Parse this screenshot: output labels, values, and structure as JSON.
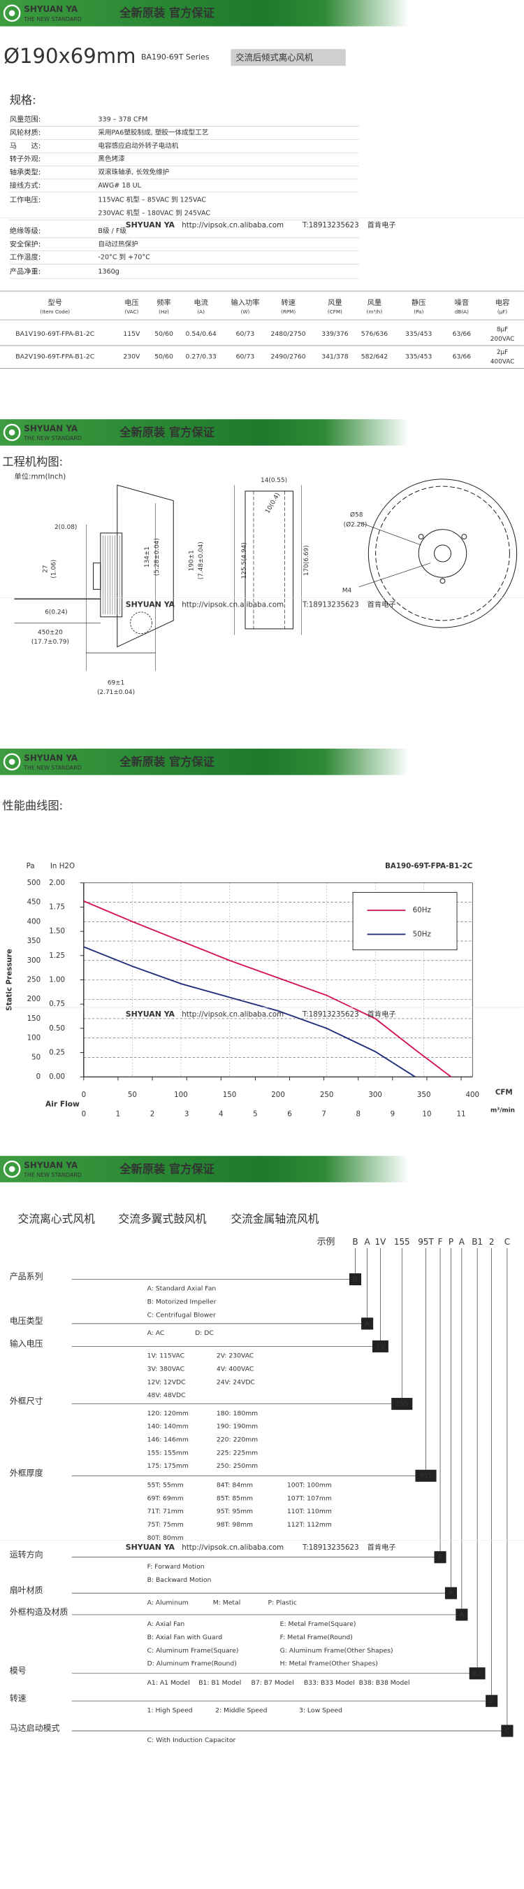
{
  "banner": {
    "brand": "SHYUAN YA",
    "slogan": "THE NEW STANDARD",
    "tagline": "全新原装 官方保证"
  },
  "watermark": {
    "brand": "SHYUAN YA",
    "url": "http://vipsok.cn.alibaba.com",
    "phone": "T:18913235623",
    "company": "首肯电子"
  },
  "title": {
    "size": "Ø190x69mm",
    "series": "BA190-69T Series",
    "desc": "交流后倾式离心风机"
  },
  "spec": {
    "heading": "规格:",
    "rows": [
      [
        "风量范围:",
        "339 – 378 CFM"
      ],
      [
        "风轮材质:",
        "采用PA6塑胶制成, 塑胶一体成型工艺"
      ],
      [
        "马　　达:",
        "电容感应启动外转子电动机"
      ],
      [
        "转子外观:",
        "黑色烤漆"
      ],
      [
        "轴承类型:",
        "双滚珠轴承, 长效免维护"
      ],
      [
        "接线方式:",
        "AWG# 18 UL"
      ],
      [
        "工作电压:",
        [
          "115VAC 机型 – 85VAC 到 125VAC",
          "230VAC 机型 – 180VAC 到 245VAC"
        ]
      ],
      [
        "绝缘等级:",
        "B级 / F级"
      ],
      [
        "安全保护:",
        "自动过热保护"
      ],
      [
        "工作温度:",
        "-20°C 到 +70°C"
      ],
      [
        "产品净重:",
        "1360g"
      ]
    ]
  },
  "table": {
    "headers": [
      [
        "型号",
        "(Item Code)"
      ],
      [
        "电压",
        "(VAC)"
      ],
      [
        "频率",
        "(Hz)"
      ],
      [
        "电流",
        "(A)"
      ],
      [
        "输入功率",
        "(W)"
      ],
      [
        "转速",
        "(RPM)"
      ],
      [
        "风量",
        "(CFM)"
      ],
      [
        "风量",
        "(m³/h)"
      ],
      [
        "静压",
        "(Pa)"
      ],
      [
        "噪音",
        "dB(A)"
      ],
      [
        "电容",
        "(μF)"
      ]
    ],
    "rows": [
      [
        "BA1V190-69T-FPA-B1-2C",
        "115V",
        "50/60",
        "0.54/0.64",
        "60/73",
        "2480/2750",
        "339/376",
        "576/636",
        "335/453",
        "63/66",
        [
          "8μF",
          "200VAC"
        ]
      ],
      [
        "BA2V190-69T-FPA-B1-2C",
        "230V",
        "50/60",
        "0.27/0.33",
        "60/73",
        "2490/2760",
        "341/378",
        "582/642",
        "335/453",
        "63/66",
        [
          "2μF",
          "400VAC"
        ]
      ]
    ]
  },
  "drawing": {
    "heading": "工程机构图:",
    "unit": "单位:mm(Inch)",
    "dims": [
      "14(0.55)",
      "2(0.08)",
      "10(0.4)",
      "Ø58",
      "(Ø2.28)",
      "27",
      "(1.06)",
      "134±1",
      "(5.28±0.04)",
      "190±1",
      "(7.48±0.04)",
      "125.5(4.94)",
      "170(6.69)",
      "6(0.24)",
      "450±20",
      "(17.7±0.79)",
      "69±1",
      "(2.71±0.04)",
      "M4"
    ]
  },
  "chart_heading": "性能曲线图:",
  "chart_data": {
    "type": "line",
    "title": "BA190-69T-FPA-B1-2C",
    "ylabel": "Pa",
    "y2label": "In H2O",
    "y_title": "Static Pressure",
    "x_title": "Air Flow",
    "xlabel": "CFM",
    "x2label": "m³/min",
    "x": [
      0,
      50,
      100,
      150,
      200,
      250,
      300,
      341,
      378
    ],
    "series": [
      {
        "name": "60Hz",
        "color": "#d4145a",
        "values": [
          453,
          400,
          350,
          300,
          255,
          210,
          150,
          70,
          0
        ]
      },
      {
        "name": "50Hz",
        "color": "#1f2f7a",
        "values": [
          335,
          285,
          240,
          205,
          170,
          125,
          65,
          0,
          null
        ]
      }
    ],
    "xlim": [
      0,
      400
    ],
    "xticks": [
      0,
      50,
      100,
      150,
      200,
      250,
      300,
      350,
      400
    ],
    "x2lim": [
      0,
      11.33
    ],
    "x2ticks": [
      0,
      1,
      2,
      3,
      4,
      5,
      6,
      7,
      8,
      9,
      10,
      11
    ],
    "ylim": [
      0,
      500
    ],
    "yticks": [
      0,
      50,
      100,
      150,
      200,
      250,
      300,
      350,
      400,
      450,
      500
    ],
    "y2lim": [
      0,
      2
    ],
    "y2ticks": [
      {
        "value": 0,
        "label": "0.00"
      },
      {
        "value": 0.25,
        "label": "0.25"
      },
      {
        "value": 0.5,
        "label": "0.50"
      },
      {
        "value": 0.75,
        "label": "0.75"
      },
      {
        "value": 1,
        "label": "1.00"
      },
      {
        "value": 1.25,
        "label": "1.25"
      },
      {
        "value": 1.5,
        "label": "1.50"
      },
      {
        "value": 1.75,
        "label": "1.75"
      },
      {
        "value": 2,
        "label": "2.00"
      }
    ],
    "grid": true,
    "legend": "upper right"
  },
  "model_code": {
    "heading": [
      "交流离心式风机",
      "交流多翼式鼓风机",
      "交流金属轴流风机"
    ],
    "example_label": "示例",
    "code": [
      "B",
      "A",
      "1V",
      "155",
      "95T",
      "F",
      "P",
      "A",
      "B1",
      "2",
      "C"
    ],
    "sections": [
      {
        "label": "产品系列",
        "options": [
          "A: Standard Axial Fan",
          "B: Motorized Impeller",
          "C: Centrifugal Blower"
        ]
      },
      {
        "label": "电压类型",
        "options": [
          "A: AC",
          "D: DC"
        ]
      },
      {
        "label": "输入电压",
        "options": [
          "1V:  115VAC",
          "2V:  230VAC",
          "3V:  380VAC",
          "4V:  400VAC",
          "12V: 12VDC",
          "24V:  24VDC",
          "48V: 48VDC"
        ]
      },
      {
        "label": "外框尺寸",
        "options": [
          "120: 120mm",
          "180: 180mm",
          "140: 140mm",
          "190: 190mm",
          "146: 146mm",
          "220: 220mm",
          "155: 155mm",
          "225: 225mm",
          "175: 175mm",
          "250: 250mm"
        ]
      },
      {
        "label": "外框厚度",
        "options": [
          "55T:  55mm",
          "84T:  84mm",
          "100T: 100mm",
          "69T:  69mm",
          "85T:  85mm",
          "107T: 107mm",
          "71T:  71mm",
          "95T:  95mm",
          "110T: 110mm",
          "75T:  75mm",
          "98T:  98mm",
          "112T: 112mm",
          "80T:  80mm"
        ]
      },
      {
        "label": "运转方向",
        "options": [
          "F: Forward Motion",
          "B: Backward Motion"
        ]
      },
      {
        "label": "扇叶材质",
        "options": [
          "A: Aluminum",
          "M: Metal",
          "P: Plastic"
        ]
      },
      {
        "label": "外框构造及材质",
        "options": [
          "A: Axial Fan",
          "E: Metal Frame(Square)",
          "B: Axial Fan with Guard",
          "F: Metal Frame(Round)",
          "C: Aluminum Frame(Square)",
          "G: Aluminum Frame(Other Shapes)",
          "D: Aluminum Frame(Round)",
          "H: Metal Frame(Other Shapes)"
        ]
      },
      {
        "label": "模号",
        "options": [
          "A1: A1 Model",
          "B1: B1 Model",
          "B7: B7 Model",
          "B33: B33 Model",
          "B38: B38 Model"
        ]
      },
      {
        "label": "转速",
        "options": [
          "1:  High Speed",
          "2:  Middle Speed",
          "3:  Low Speed"
        ]
      },
      {
        "label": "马达启动模式",
        "options": [
          "C: With Induction Capacitor"
        ]
      }
    ]
  }
}
